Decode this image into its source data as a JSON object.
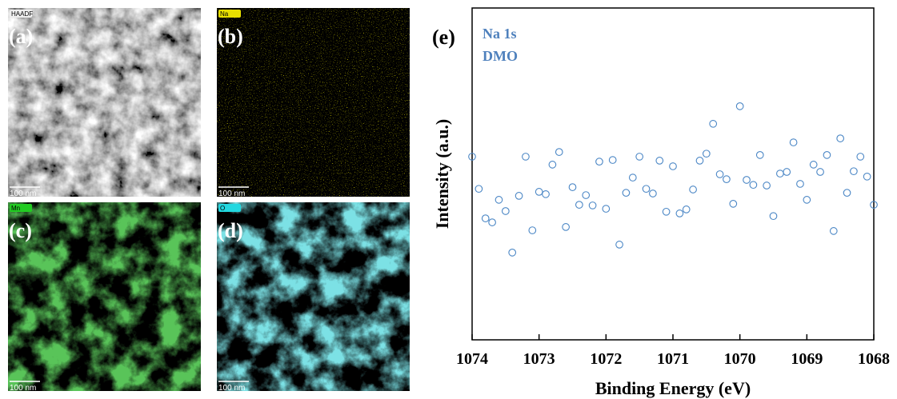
{
  "panels": [
    {
      "label": "(a)",
      "badge": "HAADF",
      "scale_bar": "100 nm"
    },
    {
      "label": "(b)",
      "badge": "Na",
      "scale_bar": "100 nm"
    },
    {
      "label": "(c)",
      "badge": "Mn",
      "scale_bar": "100 nm"
    },
    {
      "label": "(d)",
      "badge": "O",
      "scale_bar": "100 nm"
    }
  ],
  "chart_data": {
    "type": "scatter",
    "panel_label": "(e)",
    "annotations": [
      "Na 1s",
      "DMO"
    ],
    "x_label": "Binding Energy (eV)",
    "y_label": "Intensity (a.u.)",
    "color": "#4a86c5",
    "annotation_color": "#4f81bd",
    "xlim": [
      1074,
      1068
    ],
    "xticks": [
      1074,
      1073,
      1072,
      1071,
      1070,
      1069,
      1068
    ],
    "ylim": [
      0,
      100
    ],
    "x": [
      1074,
      1073.9,
      1073.8,
      1073.7,
      1073.6,
      1073.5,
      1073.4,
      1073.3,
      1073.2,
      1073.1,
      1073,
      1072.9,
      1072.8,
      1072.7,
      1072.6,
      1072.5,
      1072.4,
      1072.3,
      1072.2,
      1072.1,
      1072,
      1071.9,
      1071.8,
      1071.7,
      1071.6,
      1071.5,
      1071.4,
      1071.3,
      1071.2,
      1071.1,
      1071,
      1070.9,
      1070.8,
      1070.7,
      1070.6,
      1070.5,
      1070.4,
      1070.3,
      1070.2,
      1070.1,
      1070,
      1069.9,
      1069.8,
      1069.7,
      1069.6,
      1069.5,
      1069.4,
      1069.3,
      1069.2,
      1069.1,
      1069,
      1068.9,
      1068.8,
      1068.7,
      1068.6,
      1068.5,
      1068.4,
      1068.3,
      1068.2,
      1068.1,
      1068
    ],
    "values": [
      55.2,
      45.5,
      36.6,
      35.4,
      42.2,
      38.8,
      26.3,
      43.4,
      55.2,
      33.0,
      44.6,
      43.9,
      52.8,
      56.6,
      34.0,
      46.0,
      40.7,
      43.6,
      40.5,
      53.7,
      39.5,
      54.2,
      28.7,
      44.3,
      48.9,
      55.2,
      45.5,
      44.1,
      54.0,
      38.6,
      52.3,
      38.1,
      39.3,
      45.3,
      54.0,
      56.1,
      65.1,
      49.9,
      48.4,
      41.0,
      70.4,
      48.2,
      46.7,
      55.7,
      46.5,
      37.3,
      50.1,
      50.6,
      59.5,
      47.0,
      42.2,
      52.8,
      50.6,
      55.7,
      32.8,
      60.7,
      44.3,
      50.8,
      55.2,
      49.2,
      40.7
    ]
  }
}
